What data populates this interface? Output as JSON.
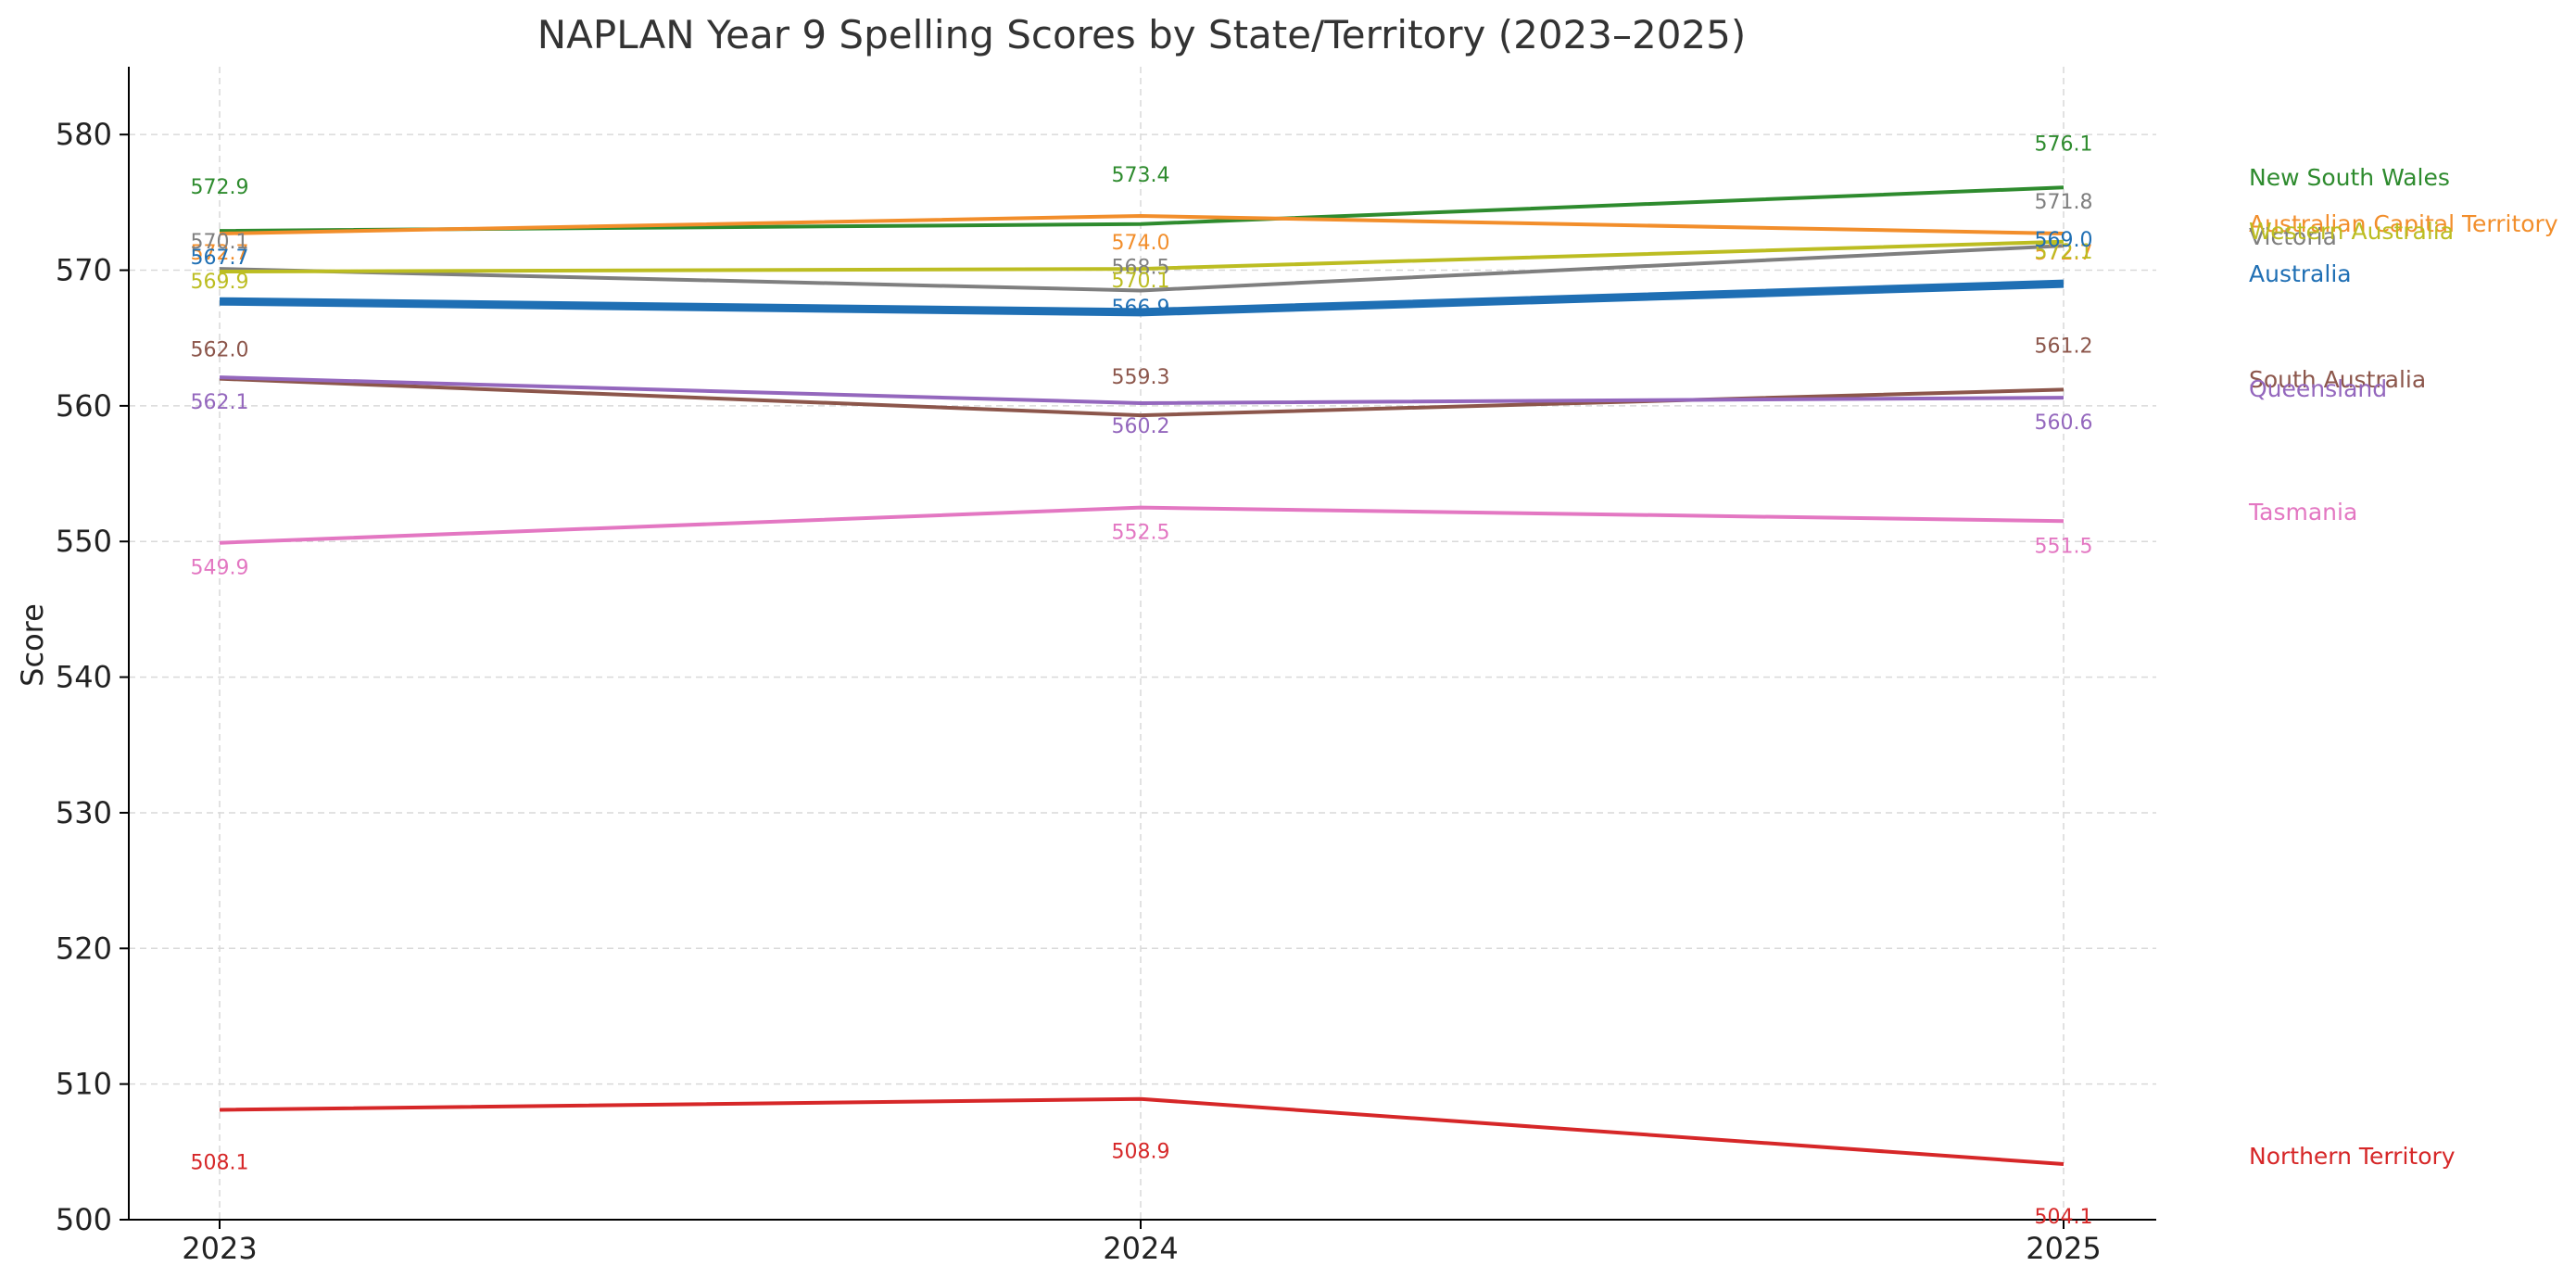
{
  "chart_data": {
    "type": "line",
    "title": "NAPLAN Year 9 Spelling Scores by State/Territory (2023–2025)",
    "xlabel": "",
    "ylabel": "Score",
    "x": [
      "2023",
      "2024",
      "2025"
    ],
    "ylim": [
      500,
      585
    ],
    "yticks": [
      500,
      510,
      520,
      530,
      540,
      550,
      560,
      570,
      580
    ],
    "grid": true,
    "legend": "right",
    "series": [
      {
        "name": "New South Wales",
        "color": "#2e8b2e",
        "values": [
          572.9,
          573.4,
          576.1
        ]
      },
      {
        "name": "Australian Capital Territory",
        "color": "#f28e2b",
        "values": [
          572.7,
          574.0,
          572.7
        ]
      },
      {
        "name": "Victoria",
        "color": "#7f7f7f",
        "values": [
          570.1,
          568.5,
          571.8
        ]
      },
      {
        "name": "Western Australia",
        "color": "#bcbd22",
        "values": [
          569.9,
          570.1,
          572.1
        ]
      },
      {
        "name": "Australia",
        "color": "#1f6fb4",
        "values": [
          567.7,
          566.9,
          569.0
        ]
      },
      {
        "name": "South Australia",
        "color": "#8c564b",
        "values": [
          562.0,
          559.3,
          561.2
        ]
      },
      {
        "name": "Queensland",
        "color": "#9467bd",
        "values": [
          562.1,
          560.2,
          560.6
        ]
      },
      {
        "name": "Tasmania",
        "color": "#e377c2",
        "values": [
          549.9,
          552.5,
          551.5
        ]
      },
      {
        "name": "Northern Territory",
        "color": "#d62728",
        "values": [
          508.1,
          508.9,
          504.1
        ]
      }
    ]
  }
}
